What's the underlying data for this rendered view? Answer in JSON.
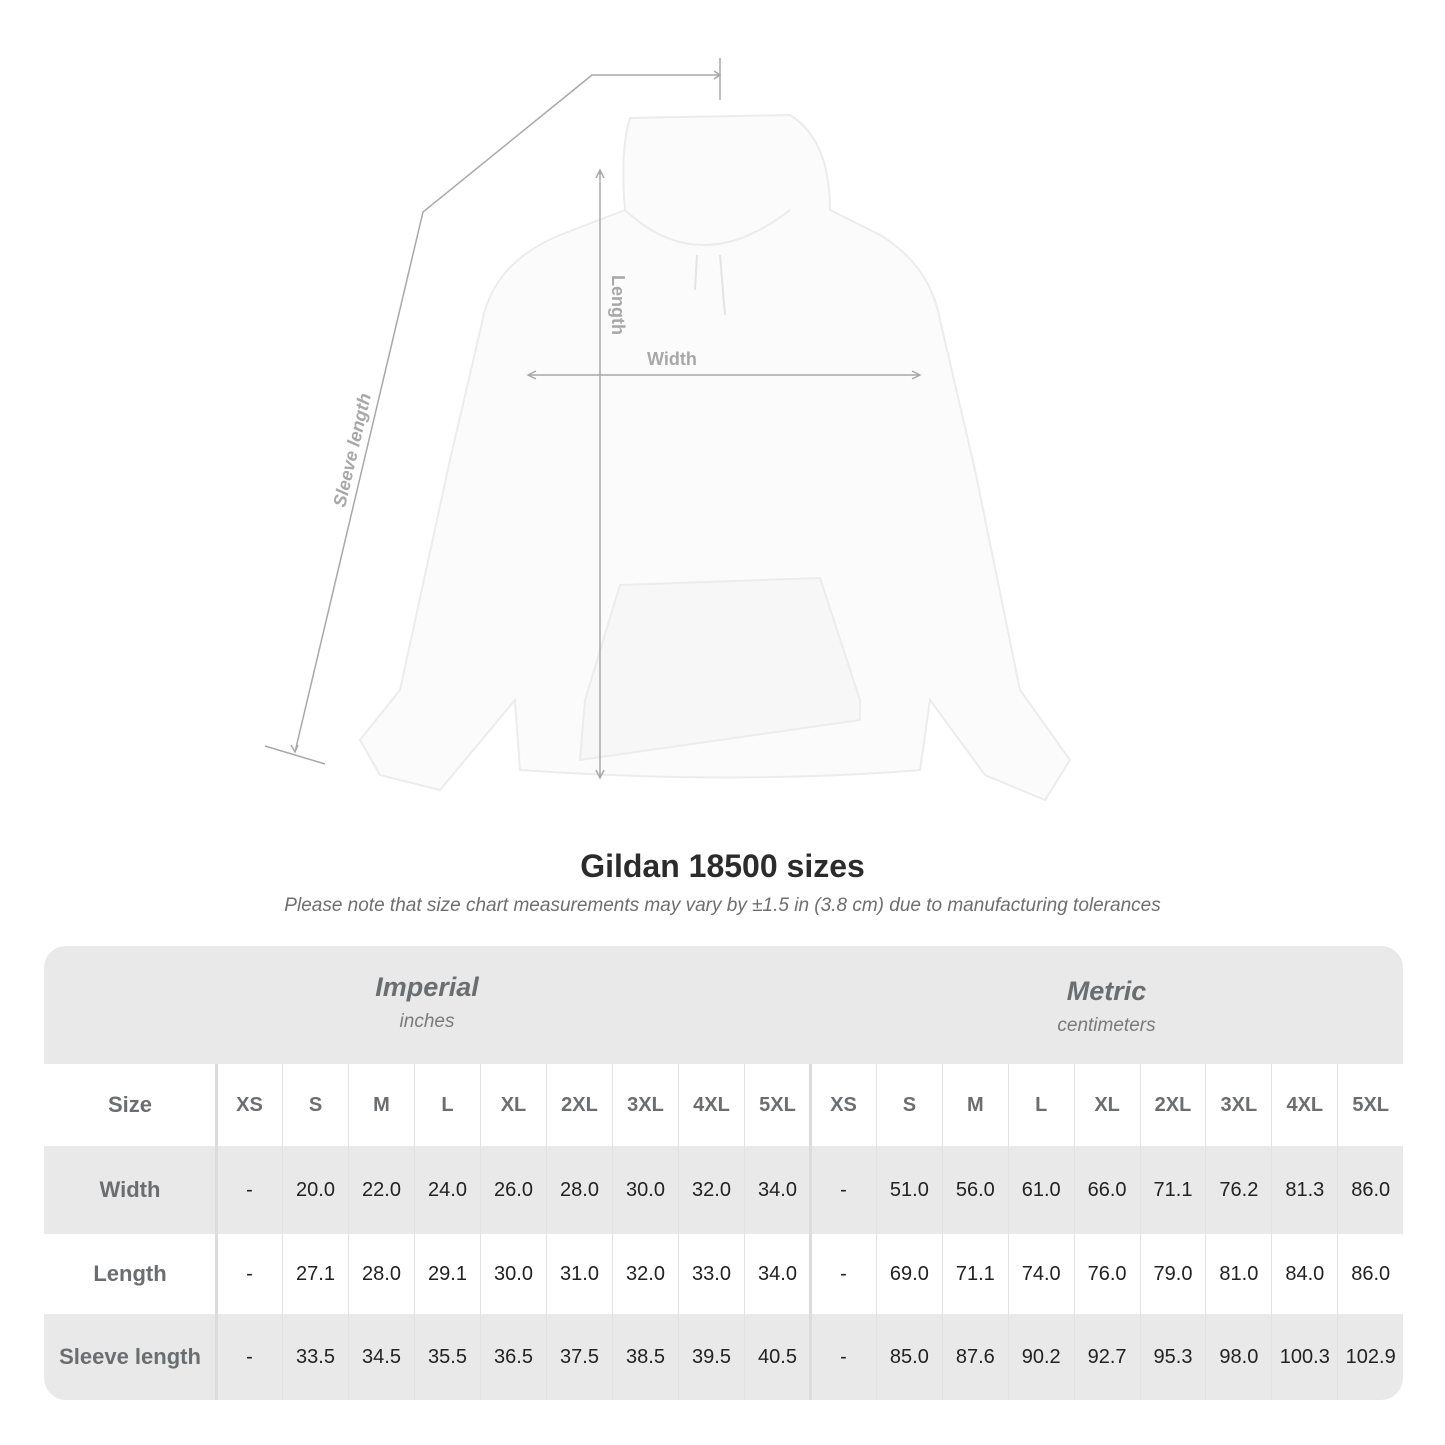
{
  "diagram": {
    "labels": {
      "length": "Length",
      "width": "Width",
      "sleeve_length": "Sleeve length"
    }
  },
  "title": "Gildan 18500 sizes",
  "note": "Please note that size chart measurements may vary by ±1.5 in (3.8 cm) due to manufacturing tolerances",
  "table": {
    "imperial": {
      "name": "Imperial",
      "unit": "inches"
    },
    "metric": {
      "name": "Metric",
      "unit": "centimeters"
    },
    "size_label": "Size",
    "sizes": [
      "XS",
      "S",
      "M",
      "L",
      "XL",
      "2XL",
      "3XL",
      "4XL",
      "5XL"
    ],
    "rows": [
      {
        "label": "Width",
        "imperial": [
          "-",
          "20.0",
          "22.0",
          "24.0",
          "26.0",
          "28.0",
          "30.0",
          "32.0",
          "34.0"
        ],
        "metric": [
          "-",
          "51.0",
          "56.0",
          "61.0",
          "66.0",
          "71.1",
          "76.2",
          "81.3",
          "86.0"
        ]
      },
      {
        "label": "Length",
        "imperial": [
          "-",
          "27.1",
          "28.0",
          "29.1",
          "30.0",
          "31.0",
          "32.0",
          "33.0",
          "34.0"
        ],
        "metric": [
          "-",
          "69.0",
          "71.1",
          "74.0",
          "76.0",
          "79.0",
          "81.0",
          "84.0",
          "86.0"
        ]
      },
      {
        "label": "Sleeve length",
        "imperial": [
          "-",
          "33.5",
          "34.5",
          "35.5",
          "36.5",
          "37.5",
          "38.5",
          "39.5",
          "40.5"
        ],
        "metric": [
          "-",
          "85.0",
          "87.6",
          "90.2",
          "92.7",
          "95.3",
          "98.0",
          "100.3",
          "102.9"
        ]
      }
    ]
  },
  "colors": {
    "header_bg": "#e9e9e9",
    "label_text": "#6b6e70",
    "measure_line": "#a8a8a8"
  }
}
